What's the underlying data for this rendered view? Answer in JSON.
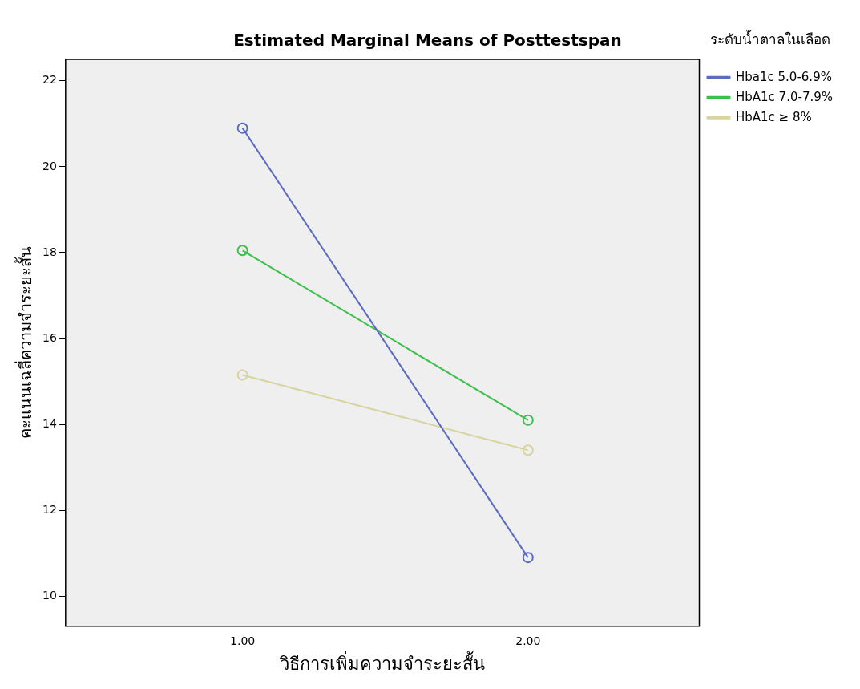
{
  "chart_data": {
    "type": "line",
    "title": "Estimated Marginal Means of Posttestspan",
    "xlabel": "วิธีการเพิ่มความจำระยะสั้น",
    "ylabel": "คะแนนเฉลี่ความจำระยะสั้น",
    "legend_title": "ระดับน้ำตาลในเลือด",
    "x": [
      1,
      2
    ],
    "series": [
      {
        "name": "Hba1c 5.0-6.9%",
        "color": "#5b6bbf",
        "values": [
          20.9,
          10.9
        ]
      },
      {
        "name": "HbA1c 7.0-7.9%",
        "color": "#3cbf4b",
        "values": [
          18.05,
          14.1
        ]
      },
      {
        "name": "HbA1c ≥ 8%",
        "color": "#d8d4a0",
        "values": [
          15.15,
          13.4
        ]
      }
    ],
    "xlim": [
      0.38,
      2.6
    ],
    "xticks": [
      {
        "value": 1,
        "label": "1.00"
      },
      {
        "value": 2,
        "label": "2.00"
      }
    ],
    "ylim": [
      9.3,
      22.5
    ],
    "yticks": [
      10,
      12,
      14,
      16,
      18,
      20,
      22
    ],
    "grid": false,
    "legend": "top right",
    "marker": "circle",
    "line_style": "solid"
  }
}
